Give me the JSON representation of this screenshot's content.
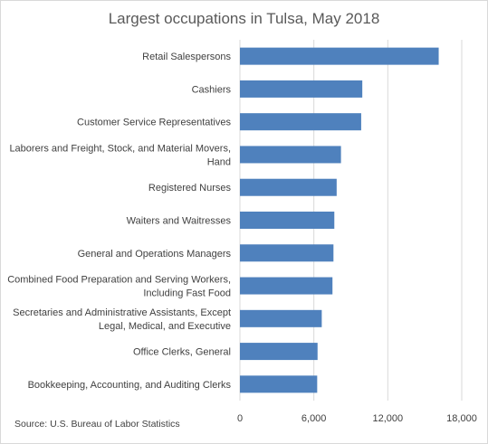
{
  "chart_data": {
    "type": "bar",
    "orientation": "horizontal",
    "title": "Largest occupations in Tulsa, May 2018",
    "categories": [
      [
        "Retail Salespersons"
      ],
      [
        "Cashiers"
      ],
      [
        "Customer Service Representatives"
      ],
      [
        "Laborers and Freight, Stock, and Material Movers,",
        "Hand"
      ],
      [
        "Registered Nurses"
      ],
      [
        "Waiters and Waitresses"
      ],
      [
        "General and Operations Managers"
      ],
      [
        "Combined Food Preparation and Serving Workers,",
        "Including Fast Food"
      ],
      [
        "Secretaries and Administrative Assistants, Except",
        "Legal, Medical, and Executive"
      ],
      [
        "Office Clerks, General"
      ],
      [
        "Bookkeeping, Accounting, and Auditing Clerks"
      ]
    ],
    "values": [
      16130,
      9930,
      9840,
      8200,
      7850,
      7660,
      7590,
      7510,
      6640,
      6300,
      6270
    ],
    "xlim": [
      0,
      18000
    ],
    "xticks": [
      0,
      6000,
      12000,
      18000
    ],
    "xtick_labels": [
      "0",
      "6,000",
      "12,000",
      "18,000"
    ],
    "grid": true,
    "bar_color": "#4f81bd",
    "grid_color": "#d9d9d9"
  },
  "source": "Source: U.S. Bureau of Labor Statistics"
}
